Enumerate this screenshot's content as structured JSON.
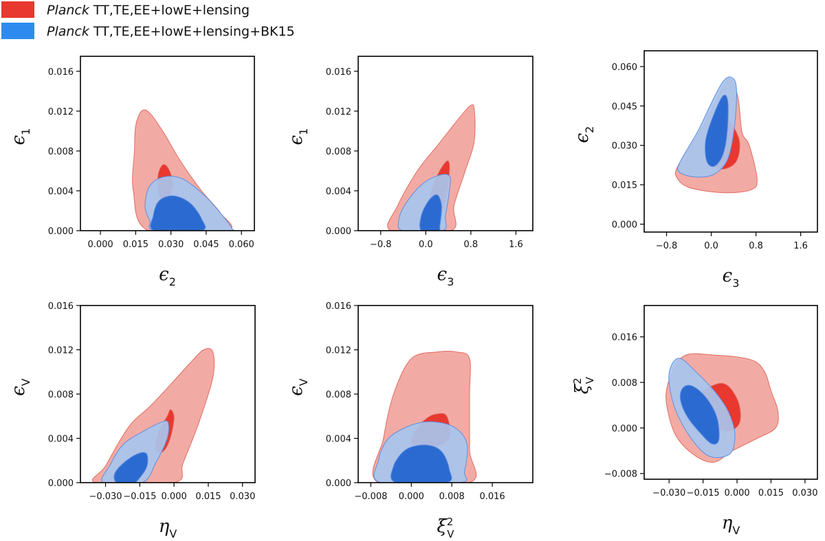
{
  "legend": [
    {
      "italic": "Planck",
      "text": " TT,TE,EE+lowE+lensing",
      "color": "#e8382f"
    },
    {
      "italic": "Planck",
      "text": " TT,TE,EE+lowE+lensing+BK15",
      "color": "#2d8bf0"
    }
  ],
  "series_styles": {
    "red_outer": "#f2aba4",
    "red_inner": "#e8382f",
    "red_edge": "#e06a60",
    "blue_outer": "#a8c4ee",
    "blue_inner": "#2466d0",
    "blue_edge": "#5d8ee0"
  },
  "chart_data": [
    {
      "type": "contour",
      "id": "p1",
      "xlabel": {
        "sym": "ϵ",
        "sub": "2"
      },
      "ylabel": {
        "sym": "ϵ",
        "sub": "1"
      },
      "xlim": [
        -0.0085,
        0.0655
      ],
      "ylim": [
        0,
        0.0175
      ],
      "xticks": [
        "0.000",
        "0.015",
        "0.030",
        "0.045",
        "0.060"
      ],
      "xtick_values": [
        0,
        0.015,
        0.03,
        0.045,
        0.06
      ],
      "yticks": [
        "0.000",
        "0.004",
        "0.008",
        "0.012",
        "0.016"
      ],
      "ytick_values": [
        0,
        0.004,
        0.008,
        0.012,
        0.016
      ],
      "contours": {
        "red_outer": [
          [
            0.0205,
            0
          ],
          [
            0.014,
            0.004
          ],
          [
            0.0145,
            0.008
          ],
          [
            0.015,
            0.0105
          ],
          [
            0.0175,
            0.012
          ],
          [
            0.021,
            0.0118
          ],
          [
            0.027,
            0.0098
          ],
          [
            0.034,
            0.007
          ],
          [
            0.043,
            0.004
          ],
          [
            0.051,
            0.0018
          ],
          [
            0.054,
            0
          ]
        ],
        "red_inner": [
          [
            0.025,
            0.0035
          ],
          [
            0.0245,
            0.0055
          ],
          [
            0.0265,
            0.0066
          ],
          [
            0.029,
            0.0062
          ],
          [
            0.031,
            0.0045
          ],
          [
            0.028,
            0.0032
          ]
        ],
        "blue_outer": [
          [
            0.024,
            0
          ],
          [
            0.021,
            0.001
          ],
          [
            0.019,
            0.0025
          ],
          [
            0.021,
            0.0045
          ],
          [
            0.027,
            0.0054
          ],
          [
            0.035,
            0.0052
          ],
          [
            0.044,
            0.0036
          ],
          [
            0.051,
            0.0018
          ],
          [
            0.056,
            0.0002
          ],
          [
            0.055,
            0
          ]
        ],
        "blue_inner": [
          [
            0.023,
            0
          ],
          [
            0.0225,
            0.0015
          ],
          [
            0.025,
            0.003
          ],
          [
            0.031,
            0.0035
          ],
          [
            0.038,
            0.0028
          ],
          [
            0.043,
            0.0012
          ],
          [
            0.043,
            0
          ]
        ]
      }
    },
    {
      "type": "contour",
      "id": "p2",
      "xlabel": {
        "sym": "ϵ",
        "sub": "3"
      },
      "ylabel": {
        "sym": "ϵ",
        "sub": "1"
      },
      "xlim": [
        -1.2,
        1.9
      ],
      "ylim": [
        0,
        0.0175
      ],
      "xticks": [
        "−0.8",
        "0.0",
        "0.8",
        "1.6"
      ],
      "xtick_values": [
        -0.8,
        0,
        0.8,
        1.6
      ],
      "yticks": [
        "0.000",
        "0.004",
        "0.008",
        "0.012",
        "0.016"
      ],
      "ytick_values": [
        0,
        0.004,
        0.008,
        0.012,
        0.016
      ],
      "contours": {
        "red_outer": [
          [
            -0.62,
            0
          ],
          [
            -0.5,
            0.0025
          ],
          [
            -0.15,
            0.006
          ],
          [
            0.2,
            0.0085
          ],
          [
            0.55,
            0.011
          ],
          [
            0.78,
            0.0125
          ],
          [
            0.86,
            0.0122
          ],
          [
            0.86,
            0.009
          ],
          [
            0.7,
            0.006
          ],
          [
            0.5,
            0.0025
          ],
          [
            0.45,
            0
          ]
        ],
        "red_inner": [
          [
            0.0,
            0.0005
          ],
          [
            0.05,
            0.003
          ],
          [
            0.2,
            0.0055
          ],
          [
            0.38,
            0.007
          ],
          [
            0.42,
            0.006
          ],
          [
            0.35,
            0.003
          ],
          [
            0.2,
            0.0006
          ]
        ],
        "blue_outer": [
          [
            -0.4,
            0
          ],
          [
            -0.48,
            0.001
          ],
          [
            -0.38,
            0.0025
          ],
          [
            -0.1,
            0.0045
          ],
          [
            0.2,
            0.0055
          ],
          [
            0.42,
            0.0055
          ],
          [
            0.42,
            0.004
          ],
          [
            0.35,
            0.0015
          ],
          [
            0.3,
            0
          ]
        ],
        "blue_inner": [
          [
            -0.08,
            0
          ],
          [
            -0.08,
            0.0015
          ],
          [
            0.05,
            0.003
          ],
          [
            0.2,
            0.0036
          ],
          [
            0.28,
            0.0025
          ],
          [
            0.25,
            0.0005
          ],
          [
            0.22,
            0
          ]
        ]
      }
    },
    {
      "type": "contour",
      "id": "p3",
      "xlabel": {
        "sym": "ϵ",
        "sub": "3"
      },
      "ylabel": {
        "sym": "ϵ",
        "sub": "2"
      },
      "xlim": [
        -1.2,
        1.9
      ],
      "ylim": [
        -0.003,
        0.066
      ],
      "xticks": [
        "−0.8",
        "0.0",
        "0.8",
        "1.6"
      ],
      "xtick_values": [
        -0.8,
        0,
        0.8,
        1.6
      ],
      "yticks": [
        "0.000",
        "0.015",
        "0.030",
        "0.045",
        "0.060"
      ],
      "ytick_values": [
        0,
        0.015,
        0.03,
        0.045,
        0.06
      ],
      "contours": {
        "red_outer": [
          [
            -0.62,
            0.018
          ],
          [
            -0.6,
            0.022
          ],
          [
            -0.3,
            0.032
          ],
          [
            0.0,
            0.043
          ],
          [
            0.2,
            0.052
          ],
          [
            0.35,
            0.055
          ],
          [
            0.48,
            0.048
          ],
          [
            0.55,
            0.035
          ],
          [
            0.68,
            0.03
          ],
          [
            0.82,
            0.017
          ],
          [
            0.7,
            0.013
          ],
          [
            0.2,
            0.012
          ],
          [
            -0.4,
            0.014
          ]
        ],
        "red_inner": [
          [
            -0.05,
            0.024
          ],
          [
            -0.05,
            0.035
          ],
          [
            0.1,
            0.042
          ],
          [
            0.3,
            0.04
          ],
          [
            0.5,
            0.032
          ],
          [
            0.45,
            0.024
          ],
          [
            0.2,
            0.021
          ]
        ],
        "blue_outer": [
          [
            -0.58,
            0.02
          ],
          [
            -0.55,
            0.024
          ],
          [
            -0.25,
            0.035
          ],
          [
            0.0,
            0.046
          ],
          [
            0.2,
            0.054
          ],
          [
            0.35,
            0.056
          ],
          [
            0.45,
            0.052
          ],
          [
            0.42,
            0.038
          ],
          [
            0.3,
            0.025
          ],
          [
            0.05,
            0.019
          ],
          [
            -0.3,
            0.018
          ]
        ],
        "blue_inner": [
          [
            -0.08,
            0.024
          ],
          [
            -0.1,
            0.032
          ],
          [
            0.05,
            0.042
          ],
          [
            0.22,
            0.049
          ],
          [
            0.3,
            0.046
          ],
          [
            0.28,
            0.034
          ],
          [
            0.2,
            0.026
          ],
          [
            0.05,
            0.022
          ]
        ]
      }
    },
    {
      "type": "contour",
      "id": "p4",
      "xlabel": {
        "sym": "η",
        "sub": "V"
      },
      "ylabel": {
        "sym": "ϵ",
        "sub": "V"
      },
      "xlim": [
        -0.041,
        0.0355
      ],
      "ylim": [
        0,
        0.016
      ],
      "xticks": [
        "−0.030",
        "−0.015",
        "0.000",
        "0.015",
        "0.030"
      ],
      "xtick_values": [
        -0.03,
        -0.015,
        0,
        0.015,
        0.03
      ],
      "yticks": [
        "0.000",
        "0.004",
        "0.008",
        "0.012",
        "0.016"
      ],
      "ytick_values": [
        0,
        0.004,
        0.008,
        0.012,
        0.016
      ],
      "contours": {
        "red_outer": [
          [
            -0.034,
            0
          ],
          [
            -0.03,
            0.0015
          ],
          [
            -0.02,
            0.005
          ],
          [
            -0.01,
            0.007
          ],
          [
            0.0,
            0.0092
          ],
          [
            0.007,
            0.0108
          ],
          [
            0.013,
            0.012
          ],
          [
            0.017,
            0.0118
          ],
          [
            0.017,
            0.0095
          ],
          [
            0.011,
            0.0055
          ],
          [
            0.004,
            0.0018
          ],
          [
            0.0,
            0
          ]
        ],
        "red_inner": [
          [
            -0.008,
            0.003
          ],
          [
            -0.007,
            0.0045
          ],
          [
            -0.003,
            0.006
          ],
          [
            -0.0015,
            0.0066
          ],
          [
            0.0,
            0.0058
          ],
          [
            -0.002,
            0.0038
          ],
          [
            -0.005,
            0.0028
          ]
        ],
        "blue_outer": [
          [
            -0.031,
            0
          ],
          [
            -0.028,
            0.0016
          ],
          [
            -0.022,
            0.0035
          ],
          [
            -0.012,
            0.0048
          ],
          [
            -0.005,
            0.0055
          ],
          [
            -0.0025,
            0.0054
          ],
          [
            -0.003,
            0.004
          ],
          [
            -0.008,
            0.0018
          ],
          [
            -0.014,
            0
          ]
        ],
        "blue_inner": [
          [
            -0.025,
            0
          ],
          [
            -0.026,
            0.0008
          ],
          [
            -0.022,
            0.0018
          ],
          [
            -0.016,
            0.0026
          ],
          [
            -0.012,
            0.0026
          ],
          [
            -0.012,
            0.0014
          ],
          [
            -0.016,
            0.0002
          ],
          [
            -0.018,
            0
          ]
        ]
      }
    },
    {
      "type": "contour",
      "id": "p5",
      "xlabel": {
        "sym": "ξ",
        "sup": "2",
        "sub": "V"
      },
      "ylabel": {
        "sym": "ϵ",
        "sub": "V"
      },
      "xlim": [
        -0.0105,
        0.024
      ],
      "ylim": [
        0,
        0.016
      ],
      "xticks": [
        "−0.008",
        "0.000",
        "0.008",
        "0.016"
      ],
      "xtick_values": [
        -0.008,
        0,
        0.008,
        0.016
      ],
      "yticks": [
        "0.000",
        "0.004",
        "0.008",
        "0.012",
        "0.016"
      ],
      "ytick_values": [
        0,
        0.004,
        0.008,
        0.012,
        0.016
      ],
      "contours": {
        "red_outer": [
          [
            -0.0065,
            0
          ],
          [
            -0.0055,
            0.004
          ],
          [
            -0.0035,
            0.008
          ],
          [
            0.0,
            0.0112
          ],
          [
            0.005,
            0.0118
          ],
          [
            0.009,
            0.0118
          ],
          [
            0.0115,
            0.0112
          ],
          [
            0.0115,
            0.008
          ],
          [
            0.0115,
            0.003
          ],
          [
            0.0115,
            0
          ]
        ],
        "red_inner": [
          [
            0.0,
            0.0035
          ],
          [
            0.001,
            0.0048
          ],
          [
            0.003,
            0.0058
          ],
          [
            0.005,
            0.0062
          ],
          [
            0.007,
            0.006
          ],
          [
            0.0075,
            0.004
          ],
          [
            0.004,
            0.0032
          ]
        ],
        "blue_outer": [
          [
            -0.006,
            0
          ],
          [
            -0.0065,
            0.002
          ],
          [
            -0.0045,
            0.004
          ],
          [
            0.0,
            0.0052
          ],
          [
            0.004,
            0.0055
          ],
          [
            0.0085,
            0.005
          ],
          [
            0.011,
            0.0035
          ],
          [
            0.0105,
            0.001
          ],
          [
            0.0095,
            0
          ]
        ],
        "blue_inner": [
          [
            -0.003,
            0
          ],
          [
            -0.0035,
            0.0015
          ],
          [
            -0.001,
            0.003
          ],
          [
            0.003,
            0.0034
          ],
          [
            0.006,
            0.0028
          ],
          [
            0.0075,
            0.0012
          ],
          [
            0.007,
            0
          ]
        ]
      }
    },
    {
      "type": "contour",
      "id": "p6",
      "xlabel": {
        "sym": "η",
        "sub": "V"
      },
      "ylabel": {
        "sym": "ξ",
        "sup": "2",
        "sub": "V"
      },
      "xlim": [
        -0.041,
        0.0355
      ],
      "ylim": [
        -0.009,
        0.0215
      ],
      "xticks": [
        "−0.030",
        "−0.015",
        "0.000",
        "0.015",
        "0.030"
      ],
      "xtick_values": [
        -0.03,
        -0.015,
        0,
        0.015,
        0.03
      ],
      "yticks": [
        "−0.008",
        "0.000",
        "0.008",
        "0.016"
      ],
      "ytick_values": [
        -0.008,
        0,
        0.008,
        0.016
      ],
      "contours": {
        "red_outer": [
          [
            -0.031,
            0.007
          ],
          [
            -0.024,
            0.0125
          ],
          [
            -0.01,
            0.0128
          ],
          [
            0.006,
            0.012
          ],
          [
            0.012,
            0.01
          ],
          [
            0.015,
            0.0065
          ],
          [
            0.018,
            0.003
          ],
          [
            0.017,
            0.0
          ],
          [
            0.008,
            -0.002
          ],
          [
            -0.002,
            -0.004
          ],
          [
            -0.01,
            -0.006
          ],
          [
            -0.018,
            -0.005
          ],
          [
            -0.026,
            -0.002
          ],
          [
            -0.03,
            0.002
          ]
        ],
        "red_inner": [
          [
            -0.016,
            0.006
          ],
          [
            -0.008,
            0.0078
          ],
          [
            -0.003,
            0.007
          ],
          [
            0.001,
            0.004
          ],
          [
            0.001,
            0.0008
          ],
          [
            -0.004,
            -0.0005
          ],
          [
            -0.012,
            0.0005
          ],
          [
            -0.016,
            0.003
          ]
        ],
        "blue_outer": [
          [
            -0.029,
            0.011
          ],
          [
            -0.025,
            0.0122
          ],
          [
            -0.018,
            0.0098
          ],
          [
            -0.01,
            0.0065
          ],
          [
            -0.004,
            0.003
          ],
          [
            -0.001,
            -0.001
          ],
          [
            -0.003,
            -0.0045
          ],
          [
            -0.012,
            -0.005
          ],
          [
            -0.02,
            -0.002
          ],
          [
            -0.027,
            0.003
          ],
          [
            -0.03,
            0.008
          ]
        ],
        "blue_inner": [
          [
            -0.024,
            0.007
          ],
          [
            -0.02,
            0.0074
          ],
          [
            -0.014,
            0.0055
          ],
          [
            -0.009,
            0.002
          ],
          [
            -0.008,
            -0.002
          ],
          [
            -0.011,
            -0.0028
          ],
          [
            -0.016,
            -0.001
          ],
          [
            -0.022,
            0.002
          ],
          [
            -0.025,
            0.005
          ]
        ]
      }
    }
  ]
}
